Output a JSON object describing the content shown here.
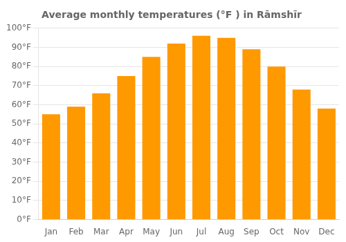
{
  "chart_data": {
    "type": "bar",
    "title": "Average monthly temperatures (°F ) in Rāmshīr",
    "categories": [
      "Jan",
      "Feb",
      "Mar",
      "Apr",
      "May",
      "Jun",
      "Jul",
      "Aug",
      "Sep",
      "Oct",
      "Nov",
      "Dec"
    ],
    "values": [
      55,
      59,
      66,
      75,
      85,
      92,
      96,
      95,
      89,
      80,
      68,
      58
    ],
    "color": "#FF9900",
    "ylim": [
      0,
      100
    ],
    "yticks": [
      {
        "value": 0,
        "label": "0°F"
      },
      {
        "value": 10,
        "label": "10°F"
      },
      {
        "value": 20,
        "label": "20°F"
      },
      {
        "value": 30,
        "label": "30°F"
      },
      {
        "value": 40,
        "label": "40°F"
      },
      {
        "value": 50,
        "label": "50°F"
      },
      {
        "value": 60,
        "label": "60°F"
      },
      {
        "value": 70,
        "label": "70°F"
      },
      {
        "value": 80,
        "label": "80°F"
      },
      {
        "value": 90,
        "label": "90°F"
      },
      {
        "value": 100,
        "label": "100°F"
      }
    ],
    "grid": true
  }
}
